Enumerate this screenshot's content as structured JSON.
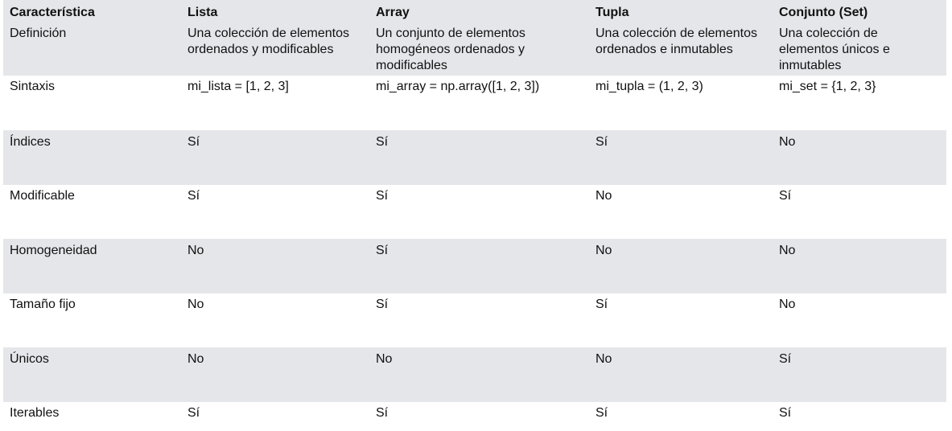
{
  "header": [
    "Característica",
    "Lista",
    "Array",
    "Tupla",
    "Conjunto (Set)"
  ],
  "rows": [
    [
      "Definición",
      "Una colección de elementos ordenados y modificables",
      "Un conjunto de elementos homogéneos ordenados y modificables",
      "Una colección de elementos ordenados e inmutables",
      "Una colección de elementos únicos e inmutables"
    ],
    [
      "Sintaxis",
      "mi_lista = [1, 2, 3]",
      "mi_array = np.array([1, 2, 3])",
      "mi_tupla = (1, 2, 3)",
      "mi_set = {1, 2, 3}"
    ],
    [
      "Índices",
      "Sí",
      "Sí",
      "Sí",
      "No"
    ],
    [
      "Modificable",
      "Sí",
      "Sí",
      "No",
      "Sí"
    ],
    [
      "Homogeneidad",
      "No",
      "Sí",
      "No",
      "No"
    ],
    [
      "Tamaño fijo",
      "No",
      "Sí",
      "Sí",
      "No"
    ],
    [
      "Únicos",
      "No",
      "No",
      "No",
      "Sí"
    ],
    [
      "Iterables",
      "Sí",
      "Sí",
      "Sí",
      "Sí"
    ]
  ],
  "colors": {
    "row_shade": "#e5e6ea",
    "row_plain": "#ffffff",
    "text": "#111111"
  }
}
